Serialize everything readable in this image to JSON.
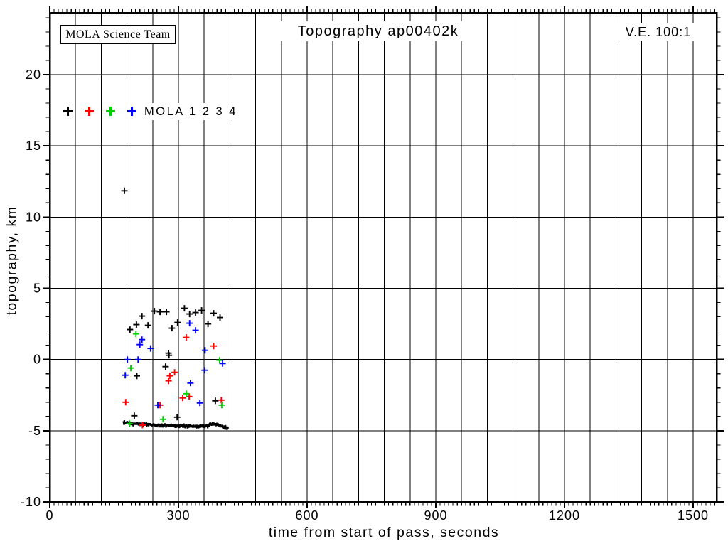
{
  "annotations": {
    "team_box": "MOLA Science Team",
    "vertical_exaggeration": "V.E. 100:1"
  },
  "chart_data": {
    "type": "scatter",
    "title": "Topography ap00402k",
    "xlabel": "time from start of pass, seconds",
    "ylabel": "topography, km",
    "xlim": [
      0,
      1555
    ],
    "ylim": [
      -10,
      24.35
    ],
    "grid": true,
    "x_major_ticks": [
      0,
      300,
      600,
      900,
      1200,
      1500
    ],
    "x_gridline_interval_seconds": 60,
    "x_minor_tick_interval_seconds": 10,
    "y_major_ticks": [
      -10,
      -5,
      0,
      5,
      10,
      15,
      20
    ],
    "y_gridline_interval_km": 5,
    "y_minor_tick_interval_km": 1,
    "legend": {
      "label": "MOLA 1 2 3 4",
      "position": "upper-left-inside"
    },
    "series": [
      {
        "name": "MOLA 1",
        "color": "#000000",
        "marker": "+",
        "points": [
          [
            174,
            11.85
          ],
          [
            187,
            2.1
          ],
          [
            197,
            -3.95
          ],
          [
            202,
            2.45
          ],
          [
            203,
            -1.15
          ],
          [
            215,
            3.05
          ],
          [
            229,
            2.4
          ],
          [
            244,
            3.4
          ],
          [
            257,
            3.35
          ],
          [
            270,
            -0.5
          ],
          [
            272,
            3.35
          ],
          [
            277,
            0.45
          ],
          [
            278,
            0.3
          ],
          [
            285,
            2.2
          ],
          [
            297,
            -4.05
          ],
          [
            298,
            2.6
          ],
          [
            314,
            3.6
          ],
          [
            326,
            3.2
          ],
          [
            340,
            3.3
          ],
          [
            354,
            3.45
          ],
          [
            369,
            2.5
          ],
          [
            382,
            3.25
          ],
          [
            386,
            -2.9
          ],
          [
            397,
            2.95
          ]
        ]
      },
      {
        "name": "MOLA 2",
        "color": "#ff0000",
        "marker": "+",
        "points": [
          [
            177,
            -3.0
          ],
          [
            216,
            -4.6
          ],
          [
            257,
            -3.2
          ],
          [
            277,
            -1.5
          ],
          [
            280,
            -1.15
          ],
          [
            291,
            -0.9
          ],
          [
            310,
            -2.7
          ],
          [
            318,
            1.55
          ],
          [
            325,
            -2.6
          ],
          [
            382,
            0.95
          ],
          [
            400,
            -2.85
          ]
        ]
      },
      {
        "name": "MOLA 3",
        "color": "#00cc00",
        "marker": "+",
        "points": [
          [
            186,
            -4.5
          ],
          [
            189,
            -0.6
          ],
          [
            201,
            1.8
          ],
          [
            264,
            -4.2
          ],
          [
            318,
            -2.4
          ],
          [
            396,
            -0.05
          ],
          [
            401,
            -3.2
          ]
        ]
      },
      {
        "name": "MOLA 4",
        "color": "#0000ff",
        "marker": "+",
        "points": [
          [
            176,
            -1.1
          ],
          [
            181,
            0.0
          ],
          [
            206,
            0.0
          ],
          [
            210,
            1.05
          ],
          [
            215,
            1.4
          ],
          [
            235,
            0.78
          ],
          [
            252,
            -3.2
          ],
          [
            326,
            2.55
          ],
          [
            328,
            -1.65
          ],
          [
            340,
            2.05
          ],
          [
            350,
            -3.05
          ],
          [
            361,
            -0.75
          ],
          [
            362,
            0.65
          ],
          [
            403,
            -0.28
          ]
        ]
      }
    ],
    "ground_track": {
      "name": "dense surface return (MOLA 1)",
      "color": "#000000",
      "anchors": [
        [
          170,
          -4.4
        ],
        [
          180,
          -4.48
        ],
        [
          195,
          -4.52
        ],
        [
          210,
          -4.55
        ],
        [
          225,
          -4.55
        ],
        [
          240,
          -4.6
        ],
        [
          255,
          -4.62
        ],
        [
          270,
          -4.62
        ],
        [
          285,
          -4.65
        ],
        [
          300,
          -4.65
        ],
        [
          315,
          -4.65
        ],
        [
          330,
          -4.68
        ],
        [
          345,
          -4.7
        ],
        [
          360,
          -4.68
        ],
        [
          370,
          -4.55
        ],
        [
          378,
          -4.5
        ],
        [
          386,
          -4.55
        ],
        [
          395,
          -4.65
        ],
        [
          405,
          -4.72
        ],
        [
          414,
          -4.78
        ]
      ]
    }
  }
}
